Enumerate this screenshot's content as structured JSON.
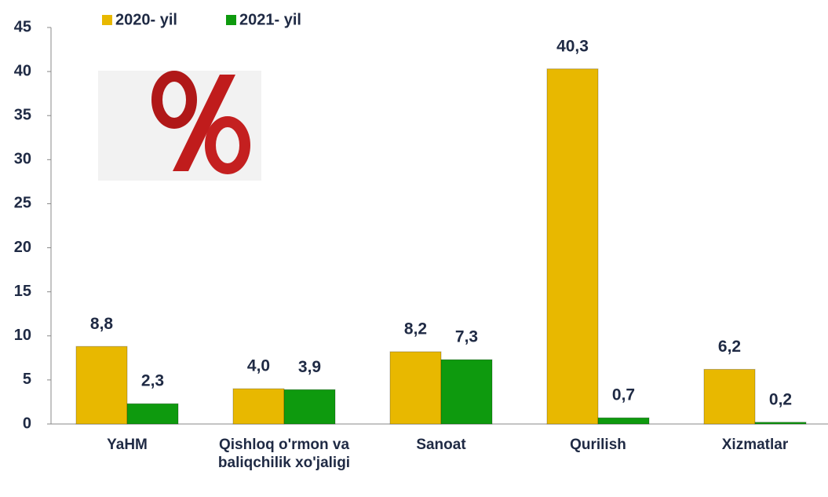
{
  "chart_data": {
    "type": "bar",
    "categories": [
      "YaHM",
      "Qishloq o'rmon va baliqchilik xo'jaligi",
      "Sanoat",
      "Qurilish",
      "Xizmatlar"
    ],
    "series": [
      {
        "name": "2020- yil",
        "color": "#e8b800",
        "values": [
          8.8,
          4.0,
          8.2,
          40.3,
          6.2
        ],
        "value_labels": [
          "8,8",
          "4,0",
          "8,2",
          "40,3",
          "6,2"
        ]
      },
      {
        "name": "2021- yil",
        "color": "#0e9a0e",
        "values": [
          2.3,
          3.9,
          7.3,
          0.7,
          0.2
        ],
        "value_labels": [
          "2,3",
          "3,9",
          "7,3",
          "0,7",
          "0,2"
        ]
      }
    ],
    "ylim": [
      0,
      45
    ],
    "yticks": [
      0,
      5,
      10,
      15,
      20,
      25,
      30,
      35,
      40,
      45
    ],
    "grid": false
  }
}
